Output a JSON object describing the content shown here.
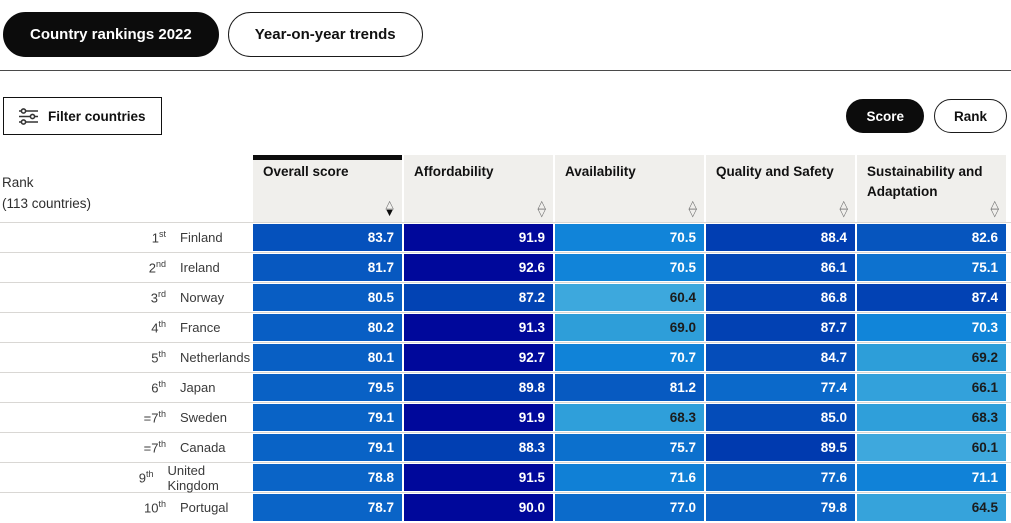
{
  "tabs": [
    {
      "label": "Country rankings 2022",
      "active": true
    },
    {
      "label": "Year-on-year trends",
      "active": false
    }
  ],
  "filter_button": {
    "label": "Filter countries",
    "icon": "sliders-icon"
  },
  "view_toggle": [
    {
      "label": "Score",
      "active": true
    },
    {
      "label": "Rank",
      "active": false
    }
  ],
  "table": {
    "rank_header_line1": "Rank",
    "rank_header_line2": "(113 countries)",
    "columns": [
      {
        "label": "Overall score",
        "sort": "desc"
      },
      {
        "label": "Affordability",
        "sort": "none"
      },
      {
        "label": "Availability",
        "sort": "none"
      },
      {
        "label": "Quality and Safety",
        "sort": "none"
      },
      {
        "label": "Sustainability and Adaptation",
        "sort": "none"
      }
    ],
    "rows": [
      {
        "rank": "1",
        "suffix": "st",
        "country": "Finland",
        "values": [
          "83.7",
          "91.9",
          "70.5",
          "88.4",
          "82.6"
        ]
      },
      {
        "rank": "2",
        "suffix": "nd",
        "country": "Ireland",
        "values": [
          "81.7",
          "92.6",
          "70.5",
          "86.1",
          "75.1"
        ]
      },
      {
        "rank": "3",
        "suffix": "rd",
        "country": "Norway",
        "values": [
          "80.5",
          "87.2",
          "60.4",
          "86.8",
          "87.4"
        ]
      },
      {
        "rank": "4",
        "suffix": "th",
        "country": "France",
        "values": [
          "80.2",
          "91.3",
          "69.0",
          "87.7",
          "70.3"
        ]
      },
      {
        "rank": "5",
        "suffix": "th",
        "country": "Netherlands",
        "values": [
          "80.1",
          "92.7",
          "70.7",
          "84.7",
          "69.2"
        ]
      },
      {
        "rank": "6",
        "suffix": "th",
        "country": "Japan",
        "values": [
          "79.5",
          "89.8",
          "81.2",
          "77.4",
          "66.1"
        ]
      },
      {
        "rank": "=7",
        "suffix": "th",
        "country": "Sweden",
        "values": [
          "79.1",
          "91.9",
          "68.3",
          "85.0",
          "68.3"
        ]
      },
      {
        "rank": "=7",
        "suffix": "th",
        "country": "Canada",
        "values": [
          "79.1",
          "88.3",
          "75.7",
          "89.5",
          "60.1"
        ]
      },
      {
        "rank": "9",
        "suffix": "th",
        "country": "United Kingdom",
        "values": [
          "78.8",
          "91.5",
          "71.6",
          "77.6",
          "71.1"
        ]
      },
      {
        "rank": "10",
        "suffix": "th",
        "country": "Portugal",
        "values": [
          "78.7",
          "90.0",
          "77.0",
          "79.8",
          "64.5"
        ]
      }
    ],
    "color_scale": {
      "segments": [
        {
          "min": 90,
          "max": 100,
          "from": "#00089B",
          "to": "#00089B"
        },
        {
          "min": 70,
          "max": 90,
          "from": "#1186DA",
          "to": "#0038AE"
        },
        {
          "min": 55,
          "max": 70,
          "from": "#47AEDF",
          "to": "#2C9DD9"
        }
      ],
      "white_text_from": 70,
      "dark_text_color": "#1b1b1b",
      "light_text_color": "#ffffff"
    }
  }
}
